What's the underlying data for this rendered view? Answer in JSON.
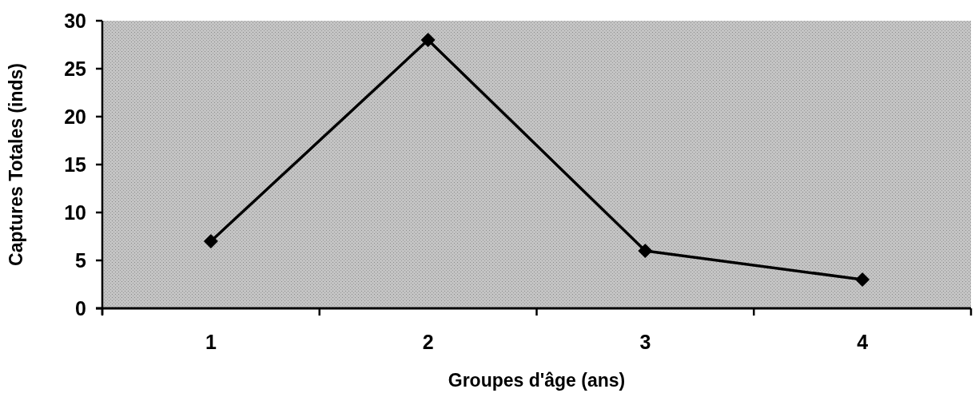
{
  "chart_data": {
    "type": "line",
    "xlabel": "Groupes d'âge (ans)",
    "ylabel": "Captures Totales (inds)",
    "categories": [
      "1",
      "2",
      "3",
      "4"
    ],
    "series": [
      {
        "color": "#000000",
        "values": [
          7,
          28,
          6,
          3
        ]
      }
    ],
    "ylim": [
      0,
      30
    ],
    "yticks": [
      0,
      5,
      10,
      15,
      20,
      25,
      30
    ],
    "grid": false,
    "marker": "diamond",
    "line_style": "solid"
  }
}
